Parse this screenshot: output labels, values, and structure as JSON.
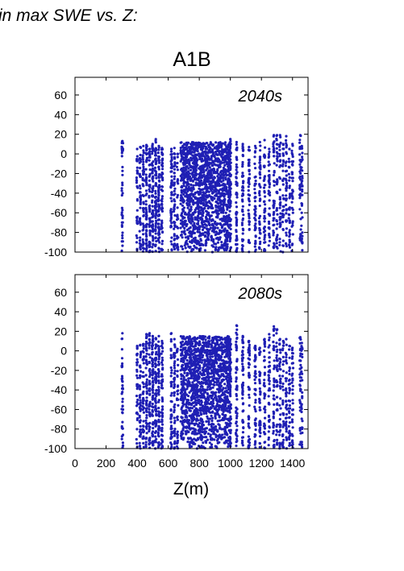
{
  "header": {
    "fragment": "in max SWE vs. Z:",
    "scenario": "A1B"
  },
  "colors": {
    "points": "#1f1fb4",
    "period_label": "#1f1fb4",
    "axes": "#000000"
  },
  "chart_data": [
    {
      "type": "scatter",
      "period_label": "2040s",
      "xlabel": "",
      "ylabel": "",
      "xlim": [
        0,
        1500
      ],
      "ylim": [
        -100,
        78
      ],
      "xticks": [],
      "yticks": [
        "60",
        "40",
        "20",
        "0",
        "-20",
        "-40",
        "-60",
        "-80",
        "-100"
      ],
      "ytick_values": [
        60,
        40,
        20,
        0,
        -20,
        -40,
        -60,
        -80,
        -100
      ],
      "series": [
        {
          "columns": [
            {
              "x": 305,
              "ymax": 13,
              "n": 40
            },
            {
              "x": 400,
              "ymax": 5,
              "n": 35
            },
            {
              "x": 420,
              "ymax": 7,
              "n": 45
            },
            {
              "x": 440,
              "ymax": 8,
              "n": 50
            },
            {
              "x": 460,
              "ymax": 9,
              "n": 60
            },
            {
              "x": 480,
              "ymax": 5,
              "n": 60
            },
            {
              "x": 500,
              "ymax": 10,
              "n": 70
            },
            {
              "x": 520,
              "ymax": 15,
              "n": 70
            },
            {
              "x": 540,
              "ymax": 8,
              "n": 70
            },
            {
              "x": 560,
              "ymax": 6,
              "n": 55
            },
            {
              "x": 620,
              "ymax": 5,
              "n": 50
            },
            {
              "x": 640,
              "ymax": 6,
              "n": 50
            },
            {
              "x": 660,
              "ymax": 0,
              "n": 30
            },
            {
              "x": 1000,
              "ymax": 15,
              "n": 60
            },
            {
              "x": 1040,
              "ymax": 12,
              "n": 60
            },
            {
              "x": 1080,
              "ymax": 10,
              "n": 55
            },
            {
              "x": 1120,
              "ymax": 7,
              "n": 50
            },
            {
              "x": 1160,
              "ymax": 8,
              "n": 50
            },
            {
              "x": 1190,
              "ymax": 12,
              "n": 45
            },
            {
              "x": 1220,
              "ymax": 14,
              "n": 45
            },
            {
              "x": 1250,
              "ymax": 5,
              "n": 40
            },
            {
              "x": 1280,
              "ymax": 19,
              "n": 45
            },
            {
              "x": 1300,
              "ymax": 19,
              "n": 40
            },
            {
              "x": 1320,
              "ymax": 19,
              "n": 40
            },
            {
              "x": 1340,
              "ymax": 10,
              "n": 35
            },
            {
              "x": 1360,
              "ymax": 18,
              "n": 40
            },
            {
              "x": 1380,
              "ymax": 5,
              "n": 35
            },
            {
              "x": 1400,
              "ymax": 10,
              "n": 35
            },
            {
              "x": 1450,
              "ymax": 19,
              "n": 35
            },
            {
              "x": 1460,
              "ymax": 8,
              "n": 35
            }
          ],
          "dense_range": {
            "xmin": 680,
            "xmax": 1000,
            "ymin": -100,
            "ymax": 12,
            "n": 1500
          }
        }
      ]
    },
    {
      "type": "scatter",
      "period_label": "2080s",
      "xlabel": "Z(m)",
      "ylabel": "",
      "xlim": [
        0,
        1500
      ],
      "ylim": [
        -100,
        78
      ],
      "xticks": [
        "0",
        "200",
        "400",
        "600",
        "800",
        "1000",
        "1200",
        "1400"
      ],
      "xtick_values": [
        0,
        200,
        400,
        600,
        800,
        1000,
        1200,
        1400
      ],
      "yticks": [
        "60",
        "40",
        "20",
        "0",
        "-20",
        "-40",
        "-60",
        "-80",
        "-100"
      ],
      "ytick_values": [
        60,
        40,
        20,
        0,
        -20,
        -40,
        -60,
        -80,
        -100
      ],
      "series": [
        {
          "columns": [
            {
              "x": 305,
              "ymax": 18,
              "n": 40
            },
            {
              "x": 400,
              "ymax": 5,
              "n": 35
            },
            {
              "x": 420,
              "ymax": 6,
              "n": 45
            },
            {
              "x": 440,
              "ymax": 7,
              "n": 50
            },
            {
              "x": 460,
              "ymax": 17,
              "n": 60
            },
            {
              "x": 480,
              "ymax": 18,
              "n": 60
            },
            {
              "x": 500,
              "ymax": 15,
              "n": 70
            },
            {
              "x": 520,
              "ymax": 13,
              "n": 70
            },
            {
              "x": 540,
              "ymax": 15,
              "n": 70
            },
            {
              "x": 560,
              "ymax": 10,
              "n": 55
            },
            {
              "x": 620,
              "ymax": 18,
              "n": 50
            },
            {
              "x": 640,
              "ymax": 12,
              "n": 50
            },
            {
              "x": 660,
              "ymax": 2,
              "n": 30
            },
            {
              "x": 1000,
              "ymax": 12,
              "n": 60
            },
            {
              "x": 1040,
              "ymax": 26,
              "n": 60
            },
            {
              "x": 1080,
              "ymax": 15,
              "n": 55
            },
            {
              "x": 1120,
              "ymax": 10,
              "n": 50
            },
            {
              "x": 1160,
              "ymax": 5,
              "n": 50
            },
            {
              "x": 1190,
              "ymax": 3,
              "n": 45
            },
            {
              "x": 1220,
              "ymax": 12,
              "n": 45
            },
            {
              "x": 1250,
              "ymax": 17,
              "n": 40
            },
            {
              "x": 1280,
              "ymax": 25,
              "n": 45
            },
            {
              "x": 1300,
              "ymax": 22,
              "n": 40
            },
            {
              "x": 1320,
              "ymax": 12,
              "n": 40
            },
            {
              "x": 1340,
              "ymax": 10,
              "n": 35
            },
            {
              "x": 1360,
              "ymax": 12,
              "n": 40
            },
            {
              "x": 1380,
              "ymax": 5,
              "n": 35
            },
            {
              "x": 1400,
              "ymax": 3,
              "n": 35
            },
            {
              "x": 1450,
              "ymax": 14,
              "n": 35
            },
            {
              "x": 1460,
              "ymax": 8,
              "n": 35
            }
          ],
          "dense_range": {
            "xmin": 680,
            "xmax": 1000,
            "ymin": -100,
            "ymax": 15,
            "n": 1500
          }
        }
      ]
    }
  ]
}
